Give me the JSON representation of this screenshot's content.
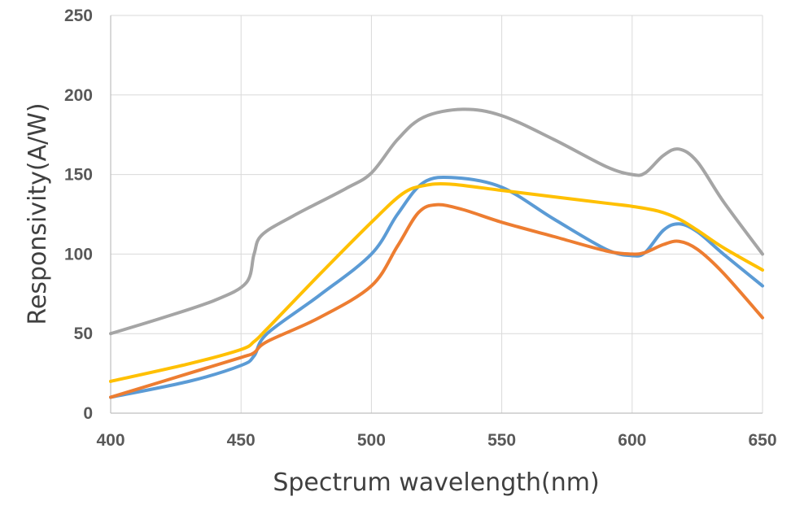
{
  "chart_data": {
    "type": "line",
    "title": "",
    "xlabel": "Spectrum wavelength(nm)",
    "ylabel": "Responsivity(A/W)",
    "xlim": [
      400,
      650
    ],
    "ylim": [
      0,
      250
    ],
    "x_ticks": [
      "400",
      "450",
      "500",
      "550",
      "600",
      "650"
    ],
    "y_ticks": [
      "0",
      "50",
      "100",
      "150",
      "200",
      "250"
    ],
    "grid": "vertical and horizontal",
    "legend": "none",
    "series": [
      {
        "color": "#a5a5a5",
        "x": [
          400,
          420,
          440,
          452,
          455,
          458,
          470,
          490,
          500,
          510,
          520,
          535,
          550,
          570,
          590,
          600,
          605,
          612,
          618,
          625,
          635,
          650
        ],
        "values": [
          50,
          60,
          71,
          82,
          100,
          112,
          124,
          141,
          151,
          172,
          186,
          191,
          187,
          172,
          155,
          150,
          151,
          162,
          166,
          158,
          133,
          100
        ]
      },
      {
        "color": "#5b9bd5",
        "x": [
          400,
          430,
          450,
          455,
          460,
          480,
          500,
          510,
          520,
          532,
          550,
          570,
          590,
          600,
          605,
          612,
          618,
          625,
          635,
          650
        ],
        "values": [
          10,
          20,
          30,
          36,
          50,
          74,
          100,
          125,
          145,
          148,
          142,
          122,
          103,
          99,
          101,
          115,
          119,
          114,
          100,
          80
        ]
      },
      {
        "color": "#ed7d31",
        "x": [
          400,
          430,
          450,
          455,
          460,
          480,
          500,
          510,
          518,
          525,
          535,
          550,
          570,
          590,
          600,
          605,
          612,
          618,
          625,
          635,
          650
        ],
        "values": [
          10,
          25,
          35,
          38,
          45,
          60,
          80,
          105,
          126,
          131,
          128,
          120,
          111,
          102,
          100,
          101,
          106,
          108,
          103,
          88,
          60
        ]
      },
      {
        "color": "#ffc000",
        "x": [
          400,
          430,
          450,
          455,
          460,
          480,
          500,
          512,
          520,
          530,
          550,
          570,
          590,
          600,
          610,
          618,
          625,
          635,
          650
        ],
        "values": [
          20,
          31,
          40,
          45,
          53,
          87,
          120,
          138,
          143,
          144,
          140,
          136,
          132,
          130,
          127,
          122,
          115,
          104,
          90
        ]
      }
    ]
  }
}
